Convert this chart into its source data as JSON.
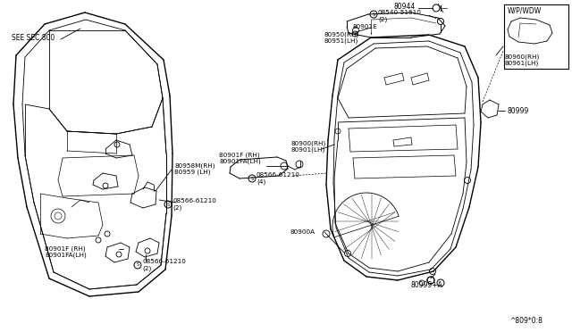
{
  "bg_color": "#ffffff",
  "line_color": "#000000",
  "watermark": "^809*0:8",
  "labels": {
    "see_sec": "SEE SEC.800",
    "l80944": "80944",
    "l08540": "S08540-51610\n(2)",
    "l80901E": "80901E",
    "l80950": "80950(RH)\n80951(LH)",
    "l80958M": "80958M(RH)\n80959 (LH)",
    "l80901F_rh": "80901F (RH)\n80901FA(LH)",
    "l08566_4": "S08566-61210\n(4)",
    "l80900": "80900(RH)\n80901(LH)",
    "l80900A": "80900A",
    "l80901F_lh": "80901F (RH)\n80901FA(LH)",
    "l08566_2a": "S08566-61210\n(2)",
    "l08566_2b": "S08566-61210\n(2)",
    "l80999": "80999",
    "l80999A": "80999+A",
    "l80960": "80960(RH)\n80961(LH)",
    "l_wpwdw": "W/P/WDW"
  }
}
